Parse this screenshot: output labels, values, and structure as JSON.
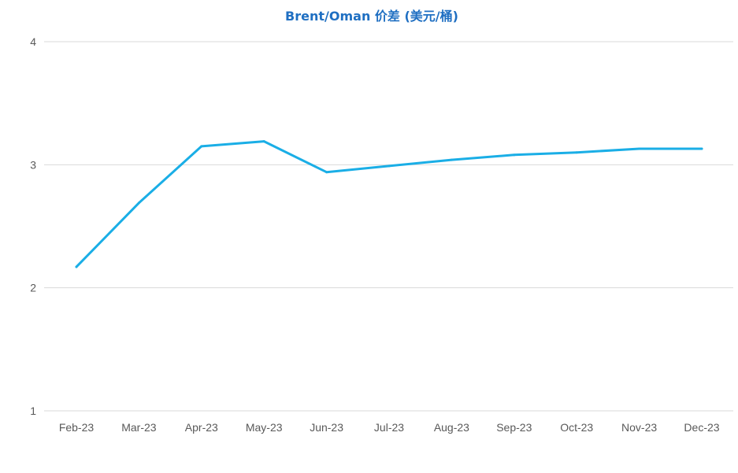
{
  "colors": {
    "title": "#1F6FC2",
    "line": "#1AAEE6",
    "grid": "#D9D9D9",
    "tick_text": "#595959"
  },
  "chart_data": {
    "type": "line",
    "title": "Brent/Oman 价差 (美元/桶)",
    "xlabel": "",
    "ylabel": "",
    "categories": [
      "Feb-23",
      "Mar-23",
      "Apr-23",
      "May-23",
      "Jun-23",
      "Jul-23",
      "Aug-23",
      "Sep-23",
      "Oct-23",
      "Nov-23",
      "Dec-23"
    ],
    "series": [
      {
        "values": [
          2.17,
          2.69,
          3.15,
          3.19,
          2.94,
          2.99,
          3.04,
          3.08,
          3.1,
          3.13,
          3.13
        ]
      }
    ],
    "ylim": [
      1,
      4
    ],
    "yticks": [
      1,
      2,
      3,
      4
    ],
    "grid": true,
    "legend": "none"
  }
}
